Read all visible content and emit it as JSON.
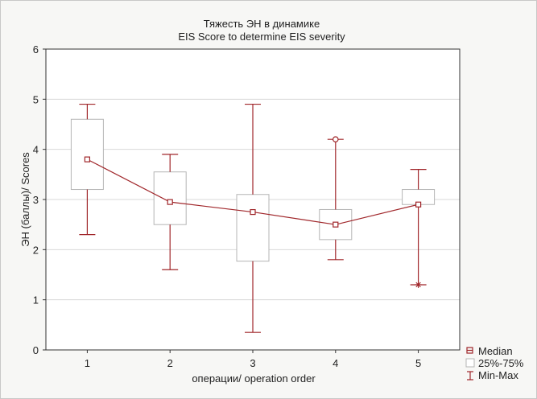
{
  "chart_data": {
    "type": "boxplot",
    "title": "Тяжесть ЭН в динамике",
    "subtitle": "EIS Score to determine EIS severity",
    "xlabel": "операции/ operation order",
    "ylabel": "ЭН (баллы)/ Scores",
    "ylim": [
      0,
      6
    ],
    "yticks": [
      "0",
      "1",
      "2",
      "3",
      "4",
      "5",
      "6"
    ],
    "categories": [
      "1",
      "2",
      "3",
      "4",
      "5"
    ],
    "grid": true,
    "legend_position": "bottom-right",
    "legend": {
      "median": "Median",
      "box": "25%-75%",
      "whisker": "Min-Max"
    },
    "series": [
      {
        "median": [
          3.8,
          2.95,
          2.75,
          2.5,
          2.9
        ],
        "q1": [
          3.2,
          2.5,
          1.77,
          2.2,
          2.9
        ],
        "q3": [
          4.6,
          3.55,
          3.1,
          2.8,
          3.2
        ],
        "min": [
          2.3,
          1.6,
          0.35,
          1.8,
          1.3
        ],
        "max": [
          4.9,
          3.9,
          4.9,
          4.2,
          3.6
        ]
      }
    ],
    "outliers": [
      {
        "category": "4",
        "value": 4.2,
        "marker": "circle"
      }
    ],
    "extremes": [
      {
        "category": "5",
        "value": 1.3,
        "marker": "asterisk"
      }
    ],
    "colors": {
      "accent": "#a0262a",
      "box": "#b4b4b4",
      "grid": "#d8d8d8",
      "axis": "#333333",
      "background": "#f7f7f5"
    }
  }
}
